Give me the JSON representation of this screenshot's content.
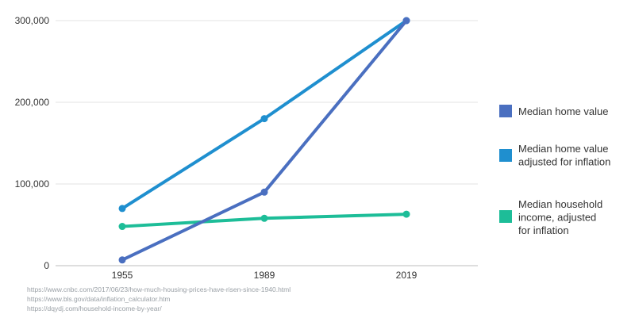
{
  "chart_data": {
    "type": "line",
    "categories": [
      "1955",
      "1989",
      "2019"
    ],
    "ylim": [
      0,
      300000
    ],
    "yticks": [
      0,
      100000,
      200000,
      300000
    ],
    "ytick_labels": [
      "0",
      "100,000",
      "200,000",
      "300,000"
    ],
    "grid": true,
    "legend_position": "right",
    "series": [
      {
        "name": "Median home value",
        "values": [
          7000,
          90000,
          300000
        ],
        "color": "#4a6fc0"
      },
      {
        "name": "Median home value adjusted for inflation",
        "values": [
          70000,
          180000,
          300000
        ],
        "color": "#1f8fcf"
      },
      {
        "name": "Median household income, adjusted for inflation",
        "values": [
          48000,
          58000,
          63000
        ],
        "color": "#1dbd98"
      }
    ]
  },
  "legend_lines": [
    [
      "Median home value"
    ],
    [
      "Median home value",
      "adjusted for inflation"
    ],
    [
      "Median household",
      "income, adjusted",
      "for inflation"
    ]
  ],
  "sources": [
    "https://www.cnbc.com/2017/06/23/how-much-housing-prices-have-risen-since-1940.html",
    "https://www.bls.gov/data/inflation_calculator.htm",
    "https://dqydj.com/household-income-by-year/"
  ]
}
